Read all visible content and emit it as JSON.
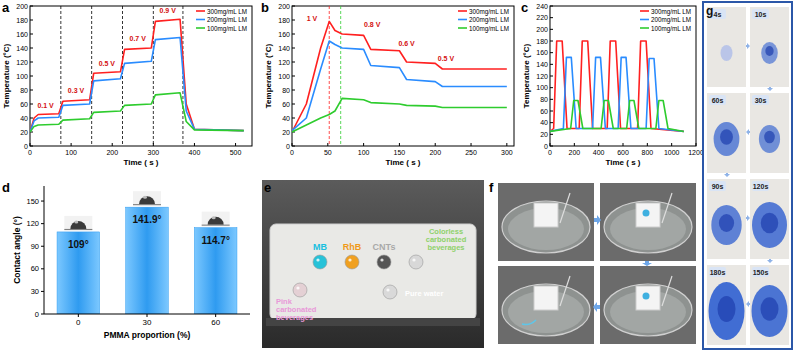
{
  "chart_data": [
    {
      "type": "line",
      "title": "a",
      "xlabel": "Time ( s )",
      "ylabel": "Temperature (°C)",
      "x": [
        0,
        10,
        20,
        70,
        80,
        145,
        155,
        220,
        230,
        295,
        305,
        365,
        380,
        400,
        520
      ],
      "series": [
        {
          "name": "300mg/mL LM",
          "color": "#ff2020",
          "values": [
            20,
            40,
            45,
            46,
            64,
            66,
            104,
            106,
            138,
            140,
            178,
            181,
            60,
            24,
            22
          ]
        },
        {
          "name": "200mg/mL LM",
          "color": "#2a8cff",
          "values": [
            20,
            36,
            40,
            41,
            58,
            60,
            93,
            96,
            118,
            121,
            152,
            155,
            50,
            24,
            22
          ]
        },
        {
          "name": "100mg/mL LM",
          "color": "#2ecc2e",
          "values": [
            20,
            28,
            30,
            31,
            37,
            39,
            48,
            50,
            58,
            60,
            73,
            76,
            35,
            23,
            22
          ]
        }
      ],
      "xlim": [
        0,
        540
      ],
      "ylim": [
        0,
        200
      ],
      "xticks": [
        0,
        100,
        200,
        300,
        400,
        500
      ],
      "yticks": [
        0,
        20,
        40,
        60,
        80,
        100,
        120,
        140,
        160,
        180,
        200
      ],
      "vlines": [
        75,
        150,
        225,
        300,
        372
      ],
      "annotations": [
        {
          "text": "0.1 V",
          "x": 38,
          "y": 55
        },
        {
          "text": "0.3 V",
          "x": 112,
          "y": 76
        },
        {
          "text": "0.5 V",
          "x": 187,
          "y": 115
        },
        {
          "text": "0.7 V",
          "x": 262,
          "y": 150
        },
        {
          "text": "0.9 V",
          "x": 335,
          "y": 190
        }
      ],
      "legend": "upper right",
      "grid": false
    },
    {
      "type": "line",
      "title": "b",
      "xlabel": "Time ( s )",
      "ylabel": "Temperature (°C)",
      "x": [
        0,
        20,
        40,
        52,
        60,
        70,
        100,
        110,
        150,
        160,
        200,
        210,
        300
      ],
      "series": [
        {
          "name": "300mg/mL LM",
          "color": "#ff2020",
          "values": [
            20,
            60,
            140,
            178,
            165,
            160,
            158,
            138,
            136,
            120,
            118,
            110,
            110
          ]
        },
        {
          "name": "200mg/mL LM",
          "color": "#2a8cff",
          "values": [
            22,
            40,
            110,
            150,
            145,
            140,
            138,
            115,
            112,
            95,
            92,
            85,
            85
          ]
        },
        {
          "name": "100mg/mL LM",
          "color": "#2ecc2e",
          "values": [
            20,
            30,
            40,
            45,
            50,
            68,
            66,
            62,
            60,
            58,
            57,
            55,
            55
          ]
        }
      ],
      "xlim": [
        0,
        310
      ],
      "ylim": [
        0,
        200
      ],
      "xticks": [
        0,
        50,
        100,
        150,
        200,
        250,
        300
      ],
      "yticks": [
        0,
        20,
        40,
        60,
        80,
        100,
        120,
        140,
        160,
        180,
        200
      ],
      "vlines": [
        52,
        68
      ],
      "annotations": [
        {
          "text": "1 V",
          "x": 28,
          "y": 178
        },
        {
          "text": "0.8 V",
          "x": 112,
          "y": 170
        },
        {
          "text": "0.6 V",
          "x": 160,
          "y": 143
        },
        {
          "text": "0.5 V",
          "x": 215,
          "y": 122
        }
      ],
      "legend": "upper right",
      "grid": false
    },
    {
      "type": "line",
      "title": "c",
      "xlabel": "Time ( s )",
      "ylabel": "Temperature (°C)",
      "series": [
        {
          "name": "300mg/mL LM",
          "color": "#ff2020",
          "x": [
            0,
            30,
            55,
            100,
            140,
            240,
            265,
            310,
            350,
            470,
            495,
            540,
            580,
            720,
            745,
            790,
            830,
            1100
          ],
          "values": [
            25,
            30,
            180,
            180,
            30,
            30,
            180,
            180,
            30,
            30,
            180,
            180,
            30,
            30,
            180,
            180,
            30,
            25
          ]
        },
        {
          "name": "200mg/mL LM",
          "color": "#2a8cff",
          "x": [
            0,
            110,
            135,
            175,
            215,
            350,
            375,
            415,
            455,
            560,
            585,
            625,
            665,
            790,
            815,
            855,
            895,
            1100
          ],
          "values": [
            25,
            30,
            152,
            152,
            30,
            30,
            152,
            152,
            30,
            30,
            152,
            152,
            30,
            30,
            150,
            150,
            30,
            25
          ]
        },
        {
          "name": "100mg/mL LM",
          "color": "#2ecc2e",
          "x": [
            0,
            170,
            195,
            230,
            270,
            420,
            445,
            480,
            520,
            630,
            655,
            690,
            730,
            870,
            895,
            930,
            970,
            1100
          ],
          "values": [
            25,
            30,
            78,
            78,
            30,
            30,
            78,
            78,
            30,
            30,
            78,
            78,
            30,
            30,
            78,
            78,
            30,
            25
          ]
        }
      ],
      "xlim": [
        0,
        1200
      ],
      "ylim": [
        0,
        240
      ],
      "xticks": [
        0,
        200,
        400,
        600,
        800,
        1000,
        1200
      ],
      "yticks": [
        0,
        20,
        40,
        60,
        80,
        100,
        120,
        140,
        160,
        180,
        200,
        220,
        240
      ],
      "legend": "upper right",
      "grid": false
    },
    {
      "type": "bar",
      "title": "d",
      "xlabel": "PMMA proportion (%)",
      "ylabel": "Contact angle (°)",
      "categories": [
        "0",
        "30",
        "60"
      ],
      "values": [
        109,
        141.9,
        114.7
      ],
      "value_labels": [
        "109°",
        "141.9°",
        "114.7°"
      ],
      "data_labels": true,
      "color": "#2f9bf0",
      "ylim": [
        0,
        170
      ],
      "yticks": [
        0,
        30,
        60,
        90,
        120,
        150
      ],
      "grid": false
    }
  ],
  "photos": {
    "e": {
      "label": "e",
      "labels": [
        "MB",
        "RhB",
        "CNTs",
        "Colorless carbonated beverages",
        "Pink carbonated beverages",
        "Pure water"
      ]
    },
    "f": {
      "label": "f"
    },
    "g": {
      "label": "g",
      "times": [
        "4s",
        "10s",
        "30s",
        "60s",
        "90s",
        "120s",
        "150s",
        "180s"
      ]
    }
  }
}
